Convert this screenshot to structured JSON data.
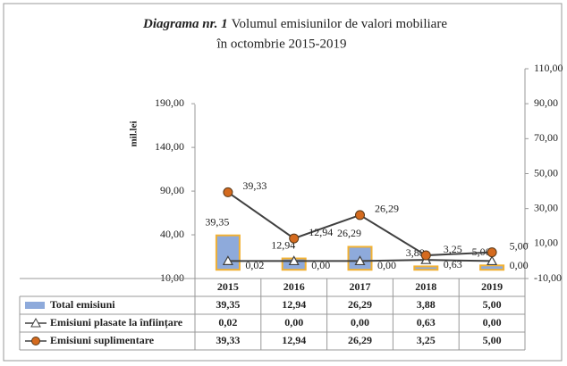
{
  "chart_data": {
    "type": "combo",
    "title_bold": "Diagrama nr. 1",
    "title": "Volumul emisiunilor de valori mobiliare",
    "subtitle": "în octombrie 2015-2019",
    "y_label": "mil.lei",
    "categories": [
      "2015",
      "2016",
      "2017",
      "2018",
      "2019"
    ],
    "ylim": [
      -10,
      230
    ],
    "yticks": [
      {
        "value": -10,
        "label": "-10,00"
      },
      {
        "value": 40,
        "label": "40,00"
      },
      {
        "value": 90,
        "label": "90,00"
      },
      {
        "value": 140,
        "label": "140,00"
      },
      {
        "value": 190,
        "label": "190,00"
      }
    ],
    "y2lim": [
      -10,
      110
    ],
    "y2ticks": [
      {
        "value": -10,
        "label": "-10,00"
      },
      {
        "value": 10,
        "label": "10,00"
      },
      {
        "value": 30,
        "label": "30,00"
      },
      {
        "value": 50,
        "label": "50,00"
      },
      {
        "value": 70,
        "label": "70,00"
      },
      {
        "value": 90,
        "label": "90,00"
      },
      {
        "value": 110,
        "label": "110,00"
      }
    ],
    "series": [
      {
        "name": "Total emisiuni",
        "type": "bar",
        "color": "#8eaadb",
        "values": [
          39.35,
          12.94,
          26.29,
          3.88,
          5.0
        ],
        "value_labels": [
          "39,35",
          "12,94",
          "26,29",
          "3,88",
          "5,00"
        ]
      },
      {
        "name": "Emisiuni plasate la înființare",
        "type": "line",
        "marker": "triangle",
        "axis": "y2",
        "color": "#404040",
        "values": [
          0.02,
          0.0,
          0.0,
          0.63,
          0.0
        ],
        "value_labels": [
          "0,02",
          "0,00",
          "0,00",
          "0,63",
          "0,00"
        ]
      },
      {
        "name": "Emisiuni suplimentare",
        "type": "line",
        "marker": "circle",
        "axis": "y2",
        "color": "#d46a1e",
        "values": [
          39.33,
          12.94,
          26.29,
          3.25,
          5.0
        ],
        "value_labels": [
          "39,33",
          "12,94",
          "26,29",
          "3,25",
          "5,00"
        ]
      }
    ]
  }
}
